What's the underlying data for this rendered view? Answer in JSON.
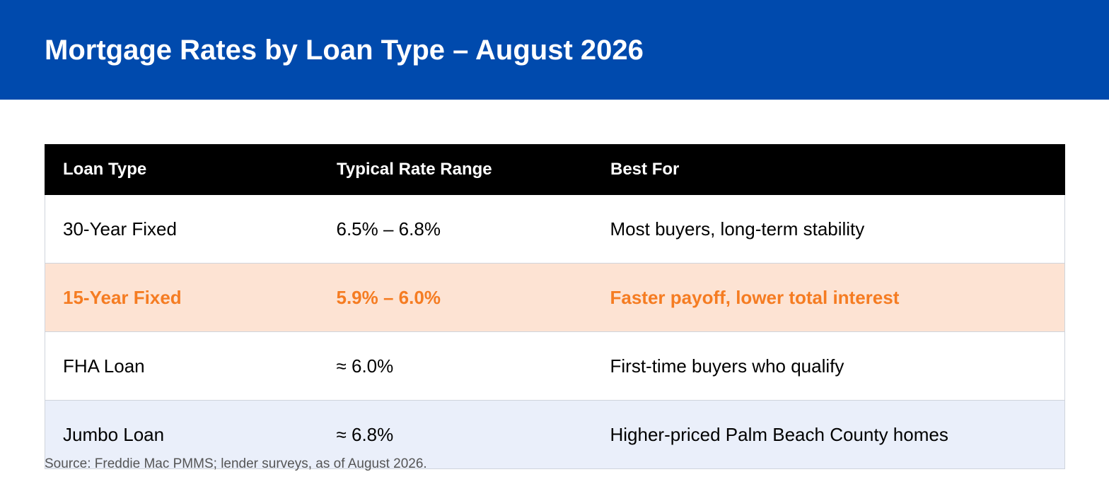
{
  "header": {
    "title": "Mortgage Rates by Loan Type – August 2026"
  },
  "table": {
    "columns": [
      "Loan Type",
      "Typical Rate Range",
      "Best For"
    ],
    "rows": [
      [
        "30-Year Fixed",
        "6.5% – 6.8%",
        "Most buyers, long-term stability"
      ],
      [
        "15-Year Fixed",
        "5.9% – 6.0%",
        "Faster payoff, lower total interest"
      ],
      [
        "FHA Loan",
        "≈ 6.0%",
        "First-time buyers who qualify"
      ],
      [
        "Jumbo Loan",
        "≈ 6.8%",
        "Higher-priced Palm Beach County homes"
      ]
    ],
    "highlighted_row": "15-Year Fixed"
  },
  "source": "Source: Freddie Mac PMMS; lender surveys, as of August 2026.",
  "colors": {
    "header_background": "#004aad",
    "table_header_background": "#000000",
    "highlight_row_background": "#fde3d3",
    "highlight_text": "#f57c22",
    "alt_row_background": "#eaeffa"
  }
}
